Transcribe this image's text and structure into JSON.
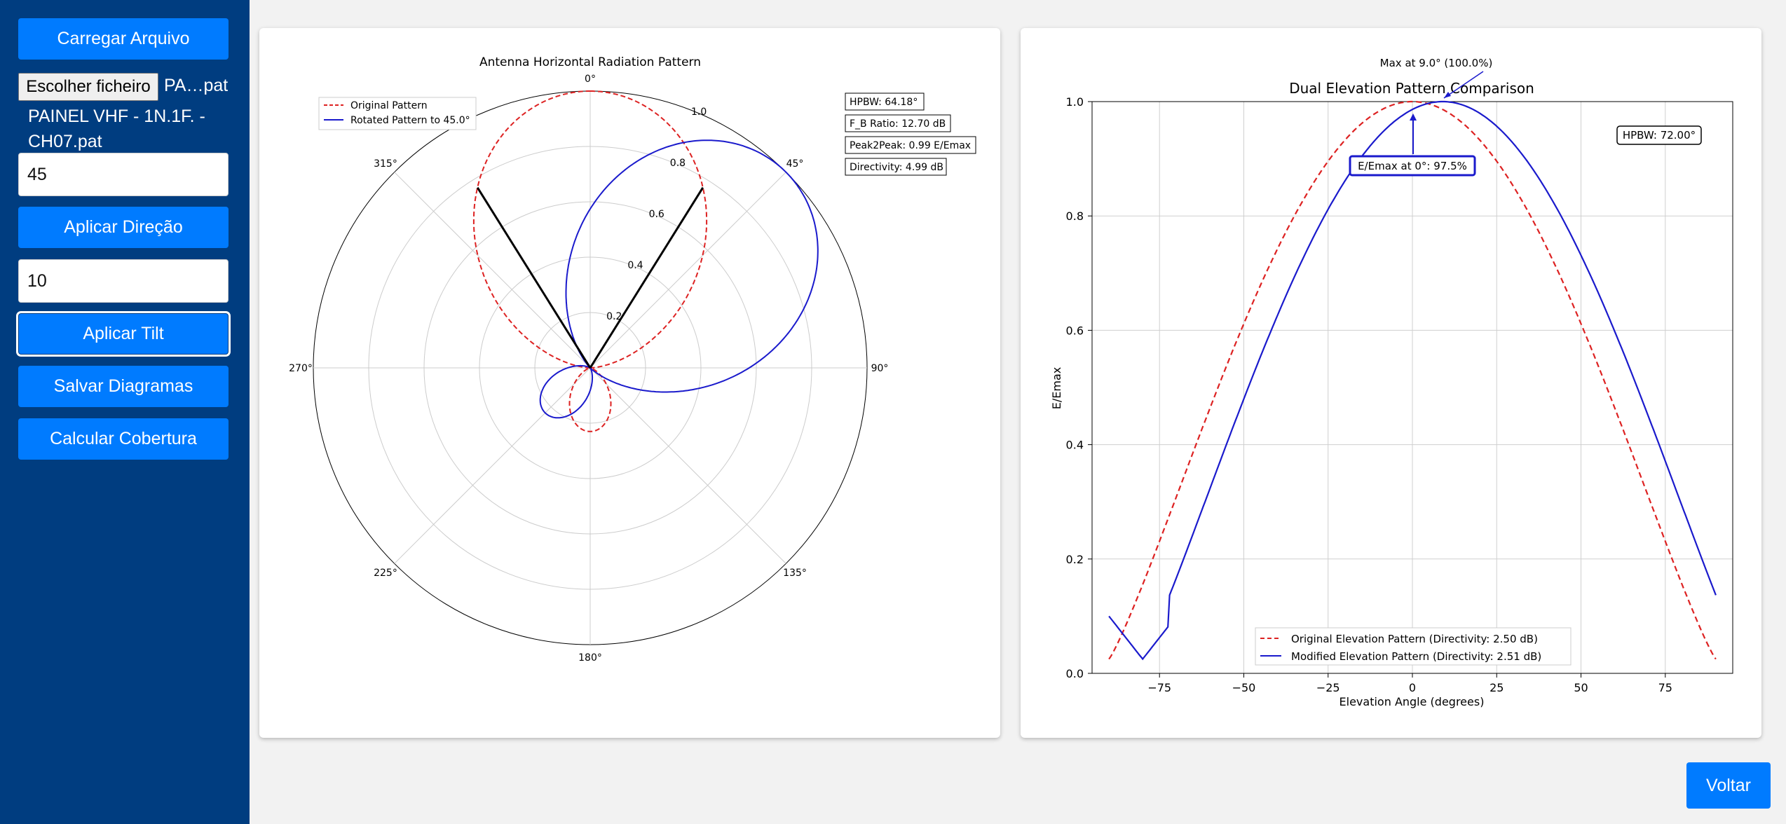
{
  "sidebar": {
    "load_button": "Carregar Arquivo",
    "file_choose_label": "Escolher ficheiro",
    "file_name_short": "PA…pat",
    "file_name_full": "PAINEL VHF - 1N.1F. - CH07.pat",
    "direction_value": "45",
    "apply_direction": "Aplicar Direção",
    "tilt_value": "10",
    "apply_tilt": "Aplicar Tilt",
    "save_diagrams": "Salvar Diagramas",
    "calc_coverage": "Calcular Cobertura"
  },
  "footer": {
    "back_button": "Voltar"
  },
  "colors": {
    "sidebar_bg": "#003d80",
    "button": "#007bff",
    "original": "#dd2222",
    "rotated": "#1a1acc"
  },
  "polar": {
    "title": "Antenna Horizontal Radiation Pattern",
    "legend": [
      "Original Pattern",
      "Rotated Pattern to 45.0°"
    ],
    "angle_labels": [
      "0°",
      "45°",
      "90°",
      "135°",
      "180°",
      "225°",
      "270°",
      "315°"
    ],
    "radial_labels": [
      "0.2",
      "0.4",
      "0.6",
      "0.8",
      "1.0"
    ],
    "stats": [
      "HPBW: 64.18°",
      "F_B Ratio: 12.70 dB",
      "Peak2Peak: 0.99 E/Emax",
      "Directivity: 4.99 dB"
    ]
  },
  "elevation": {
    "title": "Dual Elevation Pattern Comparison",
    "xlabel": "Elevation Angle (degrees)",
    "ylabel": "E/Emax",
    "xticks": [
      "−75",
      "−50",
      "−25",
      "0",
      "25",
      "50",
      "75"
    ],
    "yticks": [
      "0.0",
      "0.2",
      "0.4",
      "0.6",
      "0.8",
      "1.0"
    ],
    "legend": [
      "Original Elevation Pattern (Directivity: 2.50 dB)",
      "Modified Elevation Pattern (Directivity: 2.51 dB)"
    ],
    "max_annotation": "Max at 9.0° (100.0%)",
    "emax_annotation": "E/Emax at 0°: 97.5%",
    "hpbw_annotation": "HPBW: 72.00°"
  },
  "chart_data": [
    {
      "type": "line",
      "title": "Antenna Horizontal Radiation Pattern",
      "polar": true,
      "rlim": [
        0,
        1.0
      ],
      "series": [
        {
          "name": "Original Pattern",
          "peak_azimuth_deg": 0,
          "hpbw_deg": 64.18,
          "back_lobe": 0.23
        },
        {
          "name": "Rotated Pattern to 45.0°",
          "peak_azimuth_deg": 45,
          "hpbw_deg": 64.18,
          "back_lobe": 0.23
        }
      ],
      "hpbw_lines_deg": [
        -32,
        32
      ]
    },
    {
      "type": "line",
      "title": "Dual Elevation Pattern Comparison",
      "xlabel": "Elevation Angle (degrees)",
      "ylabel": "E/Emax",
      "xlim": [
        -95,
        95
      ],
      "ylim": [
        0,
        1.0
      ],
      "x": [
        -90,
        -80,
        -70,
        -60,
        -50,
        -40,
        -30,
        -20,
        -10,
        0,
        10,
        20,
        30,
        40,
        50,
        60,
        70,
        80,
        90
      ],
      "series": [
        {
          "name": "Original Elevation Pattern (Directivity: 2.50 dB)",
          "values": [
            0.025,
            0.12,
            0.22,
            0.34,
            0.47,
            0.61,
            0.75,
            0.88,
            0.97,
            1.0,
            0.97,
            0.88,
            0.75,
            0.61,
            0.47,
            0.34,
            0.22,
            0.12,
            0.025
          ]
        },
        {
          "name": "Modified Elevation Pattern (Directivity: 2.51 dB)",
          "values": [
            0.1,
            0.025,
            0.1,
            0.22,
            0.34,
            0.47,
            0.62,
            0.76,
            0.89,
            0.975,
            1.0,
            0.96,
            0.87,
            0.74,
            0.6,
            0.46,
            0.33,
            0.21,
            0.11
          ]
        }
      ],
      "grid": true,
      "legend_position": "lower center"
    }
  ]
}
